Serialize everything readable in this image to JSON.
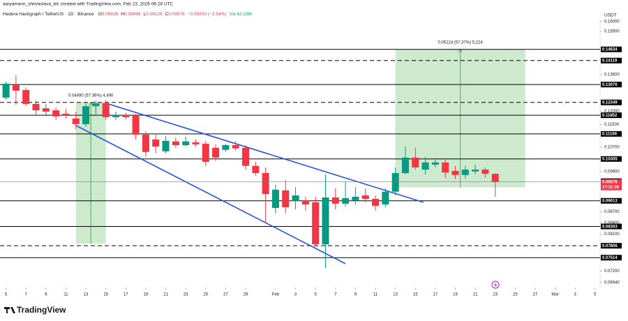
{
  "chart_data": {
    "type": "candlestick",
    "credit": "aaryamann_shrivastava_blc created with TradingView.com, Feb 23, 2026 06:28 UTC",
    "symbol": "Hedera Hashgraph / TetherUS · 1D · Binance",
    "ohlc_labels": [
      "O",
      "H",
      "L",
      "C"
    ],
    "change": "−0.00250 (−2.54%)",
    "volume": "Vol 42.23M",
    "currency": "USDT",
    "countdown": "17:31:59",
    "brand": "TradingView",
    "log_scale": true,
    "grid": false,
    "up_color": "#089981",
    "down_color": "#f23645",
    "open": [
      0.1254,
      0.1305,
      0.1285,
      0.1229,
      0.1212,
      0.1204,
      0.1191,
      0.1173,
      0.1152,
      0.122,
      0.1232,
      0.1178,
      0.1186,
      0.1183,
      0.1114,
      0.1097,
      0.1056,
      0.109,
      0.1077,
      0.1087,
      0.1082,
      0.1068,
      0.1061,
      0.1077,
      0.1068,
      0.1008,
      0.0985,
      0.0881,
      0.0932,
      0.0901,
      0.0903,
      0.0897,
      0.0784,
      0.0911,
      0.0893,
      0.0903,
      0.0917,
      0.0907,
      0.0891,
      0.0928,
      0.0985,
      0.1035,
      0.0996,
      0.1012,
      0.1019,
      0.0992,
      0.0979,
      0.099,
      0.0996,
      0.09826
    ],
    "high": [
      0.132,
      0.1347,
      0.1296,
      0.1243,
      0.1229,
      0.1215,
      0.1209,
      0.1199,
      0.1231,
      0.1243,
      0.1245,
      0.1199,
      0.1194,
      0.1191,
      0.1126,
      0.1114,
      0.1109,
      0.1104,
      0.1107,
      0.1097,
      0.1092,
      0.108,
      0.1082,
      0.109,
      0.1077,
      0.1021,
      0.1003,
      0.0949,
      0.0963,
      0.0942,
      0.0913,
      0.0913,
      0.0981,
      0.0938,
      0.0959,
      0.0942,
      0.0938,
      0.0917,
      0.0938,
      0.1003,
      0.1072,
      0.1068,
      0.1038,
      0.1031,
      0.1031,
      0.1008,
      0.1008,
      0.1012,
      0.1003,
      0.09845
    ],
    "low": [
      0.1246,
      0.1226,
      0.122,
      0.1186,
      0.1181,
      0.1168,
      0.1173,
      0.1134,
      0.1142,
      0.1186,
      0.1168,
      0.1168,
      0.117,
      0.1097,
      0.1038,
      0.1049,
      0.1049,
      0.1068,
      0.1072,
      0.1072,
      0.1008,
      0.1024,
      0.1054,
      0.1058,
      0.0996,
      0.0977,
      0.0839,
      0.0866,
      0.0866,
      0.0877,
      0.0873,
      0.0778,
      0.0727,
      0.0877,
      0.0885,
      0.0891,
      0.0897,
      0.0873,
      0.0883,
      0.0917,
      0.0981,
      0.0996,
      0.0981,
      0.1003,
      0.097,
      0.0966,
      0.0968,
      0.0981,
      0.097,
      0.09129
    ],
    "close": [
      0.1311,
      0.1282,
      0.1229,
      0.1204,
      0.1199,
      0.1181,
      0.1183,
      0.1152,
      0.122,
      0.1231,
      0.1178,
      0.1186,
      0.1178,
      0.1114,
      0.1054,
      0.1072,
      0.1092,
      0.1077,
      0.109,
      0.108,
      0.1021,
      0.1035,
      0.1077,
      0.1066,
      0.1008,
      0.0985,
      0.0921,
      0.0934,
      0.0883,
      0.0917,
      0.0891,
      0.0784,
      0.0911,
      0.0893,
      0.0909,
      0.0913,
      0.0907,
      0.0887,
      0.0928,
      0.0985,
      0.1035,
      0.1003,
      0.1019,
      0.1019,
      0.0987,
      0.0979,
      0.0996,
      0.0996,
      0.0983,
      0.09576
    ],
    "xlim": [
      -0.6,
      59.5
    ],
    "xticks": [
      {
        "value": 0,
        "label": "5"
      },
      {
        "value": 2,
        "label": "7"
      },
      {
        "value": 4,
        "label": "9"
      },
      {
        "value": 6,
        "label": "11"
      },
      {
        "value": 8,
        "label": "13"
      },
      {
        "value": 10,
        "label": "15"
      },
      {
        "value": 12,
        "label": "17"
      },
      {
        "value": 14,
        "label": "19"
      },
      {
        "value": 16,
        "label": "21"
      },
      {
        "value": 18,
        "label": "23"
      },
      {
        "value": 20,
        "label": "25"
      },
      {
        "value": 22,
        "label": "27"
      },
      {
        "value": 24,
        "label": "29"
      },
      {
        "value": 27,
        "label": "Feb"
      },
      {
        "value": 29,
        "label": "3"
      },
      {
        "value": 31,
        "label": "5"
      },
      {
        "value": 33,
        "label": "7"
      },
      {
        "value": 35,
        "label": "9"
      },
      {
        "value": 37,
        "label": "11"
      },
      {
        "value": 39,
        "label": "13"
      },
      {
        "value": 41,
        "label": "15"
      },
      {
        "value": 43,
        "label": "17"
      },
      {
        "value": 45,
        "label": "19"
      },
      {
        "value": 47,
        "label": "21"
      },
      {
        "value": 49,
        "label": "23"
      },
      {
        "value": 51,
        "label": "25"
      },
      {
        "value": 53,
        "label": "27"
      },
      {
        "value": 55,
        "label": "Mar"
      },
      {
        "value": 57,
        "label": "3"
      },
      {
        "value": 59,
        "label": "5"
      }
    ],
    "ylim": [
      0.0686,
      0.161
    ],
    "yticks": [
      {
        "value": 0.16,
        "label": "0.16000"
      },
      {
        "value": 0.155,
        "label": "0.15500"
      },
      {
        "value": 0.135,
        "label": "0.13500"
      },
      {
        "value": 0.12,
        "label": "0.12000"
      },
      {
        "value": 0.115,
        "label": "0.11500"
      },
      {
        "value": 0.107,
        "label": "0.10700"
      },
      {
        "value": 0.099,
        "label": "0.09900"
      },
      {
        "value": 0.087,
        "label": "0.08700"
      },
      {
        "value": 0.084,
        "label": "0.08400"
      },
      {
        "value": 0.081,
        "label": "0.08100"
      },
      {
        "value": 0.072,
        "label": "0.07200"
      },
      {
        "value": 0.0694,
        "label": "0.06940"
      }
    ],
    "levels": [
      {
        "value": 0.14634,
        "style": "solid"
      },
      {
        "value": 0.14119,
        "style": "dashed"
      },
      {
        "value": 0.13076,
        "style": "solid"
      },
      {
        "value": 0.12349,
        "style": "dashed"
      },
      {
        "value": 0.11852,
        "style": "solid"
      },
      {
        "value": 0.11166,
        "style": "solid"
      },
      {
        "value": 0.10305,
        "style": "solid"
      },
      {
        "value": 0.09598,
        "style": "none"
      },
      {
        "value": 0.09013,
        "style": "solid"
      },
      {
        "value": 0.08303,
        "style": "solid"
      },
      {
        "value": 0.07806,
        "style": "dashed"
      },
      {
        "value": 0.07514,
        "style": "solid"
      }
    ],
    "level_color": "#000000",
    "trendline_color": "#2453e0",
    "trendlines": [
      {
        "x": [
          10,
          41.8
        ],
        "y": [
          0.1232,
          0.0897
        ]
      },
      {
        "x": [
          7,
          34
        ],
        "y": [
          0.1147,
          0.0737
        ]
      }
    ],
    "measure_color": "#4caf50",
    "measures": [
      {
        "x": [
          7,
          10
        ],
        "y": [
          0.0786,
          0.1235
        ],
        "label": "0.04490 (57.36%) 4,490"
      },
      {
        "x": [
          39,
          52
        ],
        "y": [
          0.0941,
          0.1463
        ],
        "label": "0.05224 (57.37%) 5,224"
      }
    ]
  }
}
